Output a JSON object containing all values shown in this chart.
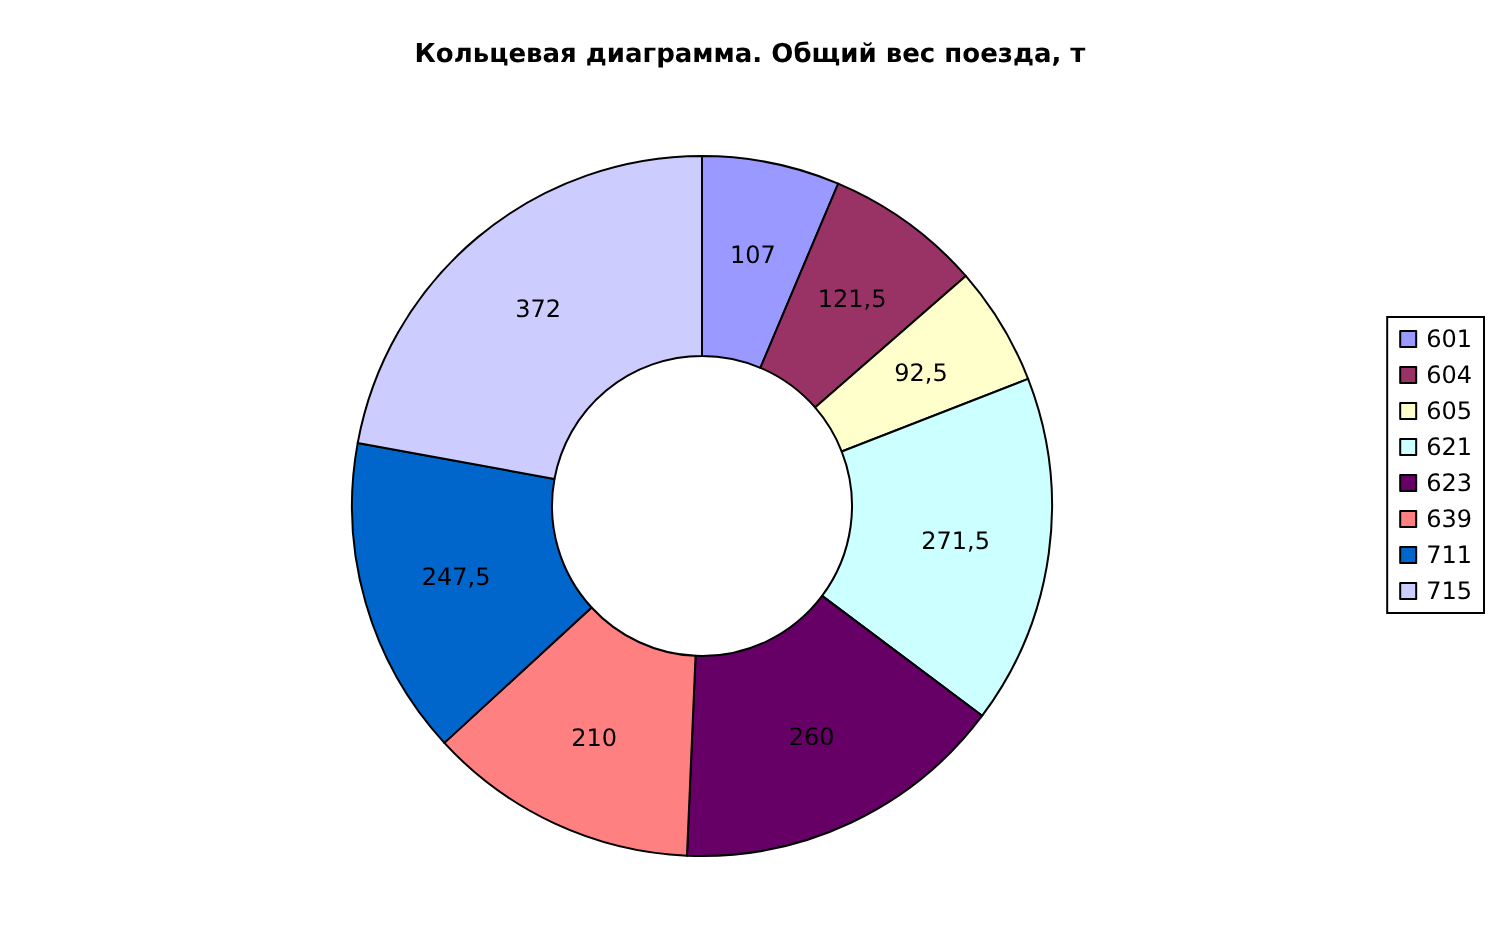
{
  "chart_data": {
    "type": "donut",
    "title": "Кольцевая диаграмма. Общий вес поезда, т",
    "categories": [
      "601",
      "604",
      "605",
      "621",
      "623",
      "639",
      "711",
      "715"
    ],
    "values": [
      107,
      121.5,
      92.5,
      271.5,
      260,
      210,
      247.5,
      372
    ],
    "value_labels": [
      "107",
      "121,5",
      "92,5",
      "271,5",
      "260",
      "210",
      "247,5",
      "372"
    ],
    "colors": [
      "#9999ff",
      "#993366",
      "#ffffcc",
      "#ccffff",
      "#660066",
      "#ff8080",
      "#0066cc",
      "#ccccff"
    ],
    "legend": "right"
  }
}
